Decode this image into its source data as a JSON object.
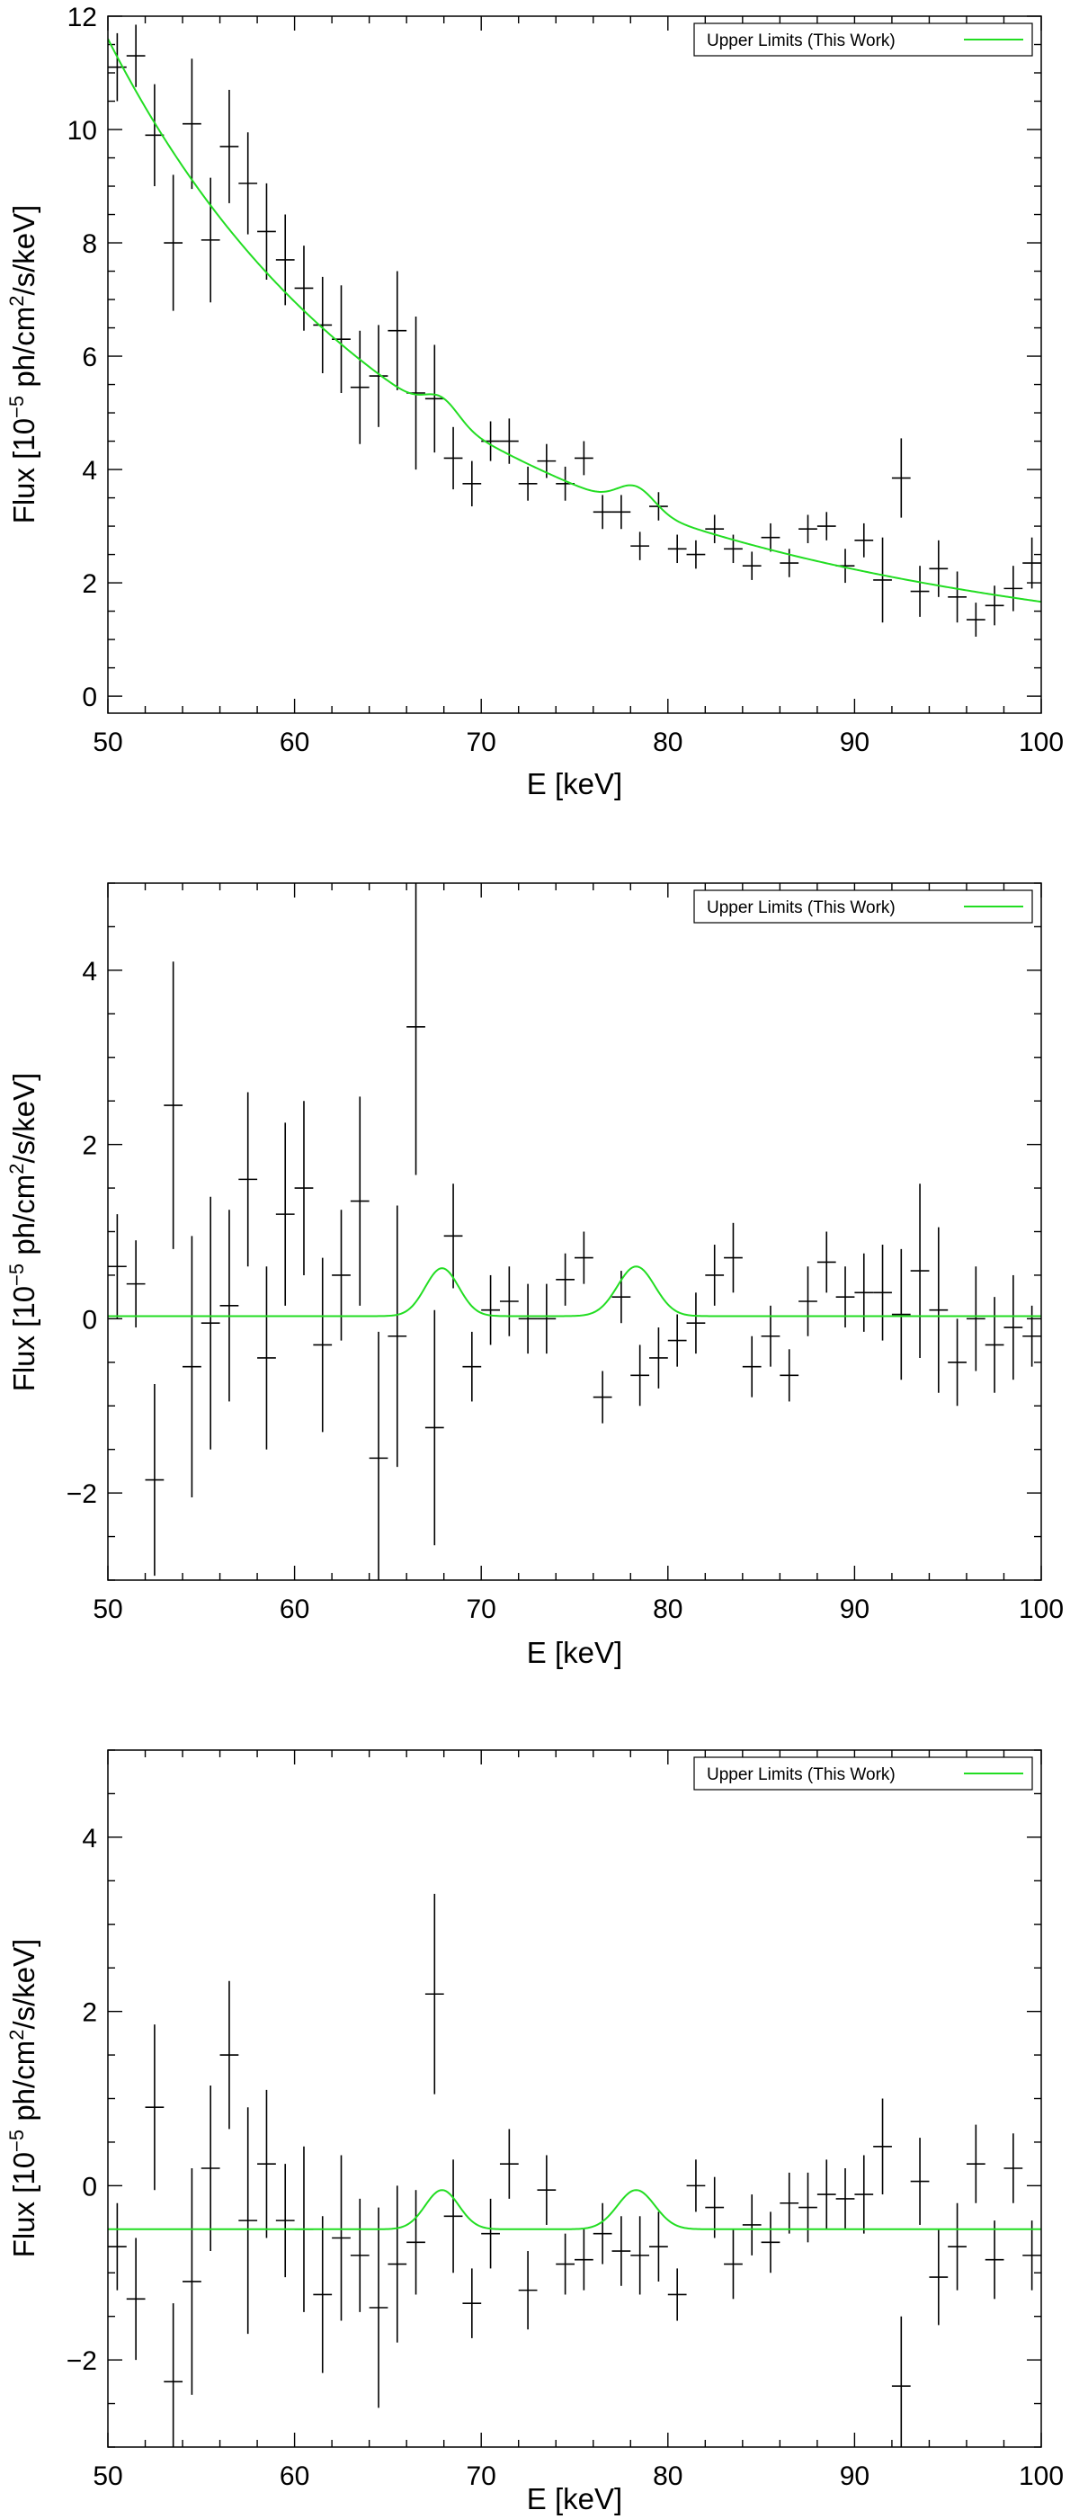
{
  "figure_title": "",
  "chart_data": [
    {
      "type": "scatter",
      "title": "",
      "xlabel": "E [keV]",
      "ylabel_main": "Flux [10",
      "ylabel_exp": "−5",
      "ylabel_mid": " ph/cm",
      "ylabel_exp2": "2",
      "ylabel_end": "/s/keV]",
      "xlim": [
        50,
        100
      ],
      "ylim": [
        -0.3,
        12
      ],
      "xticks": [
        50,
        60,
        70,
        80,
        90,
        100
      ],
      "xtick_labels": [
        "50",
        "60",
        "70",
        "80",
        "90",
        "100"
      ],
      "yticks": [
        0,
        2,
        4,
        6,
        8,
        10,
        12
      ],
      "ytick_labels": [
        "0",
        "2",
        "4",
        "6",
        "8",
        "10",
        "12"
      ],
      "legend": {
        "label": "Upper Limits (This Work)",
        "color": "#22dd22",
        "position": "top-right"
      },
      "model": {
        "type": "powerlaw_plus_lines",
        "norm": 11.6,
        "index": 2.8,
        "baseline": 0,
        "lines": [
          {
            "center": 67.9,
            "amp": 0.35,
            "sigma": 0.9
          },
          {
            "center": 78.3,
            "amp": 0.4,
            "sigma": 1.0
          }
        ]
      },
      "series": [
        {
          "name": "data",
          "x": [
            50.5,
            51.5,
            52.5,
            53.5,
            54.5,
            55.5,
            56.5,
            57.5,
            58.5,
            59.5,
            60.5,
            61.5,
            62.5,
            63.5,
            64.5,
            65.5,
            66.5,
            67.5,
            68.5,
            69.5,
            70.5,
            71.5,
            72.5,
            73.5,
            74.5,
            75.5,
            76.5,
            77.5,
            78.5,
            79.5,
            80.5,
            81.5,
            82.5,
            83.5,
            84.5,
            85.5,
            86.5,
            87.5,
            88.5,
            89.5,
            90.5,
            91.5,
            92.5,
            93.5,
            94.5,
            95.5,
            96.5,
            97.5,
            98.5,
            99.5
          ],
          "y": [
            11.1,
            11.3,
            9.9,
            8.0,
            10.1,
            8.05,
            9.7,
            9.05,
            8.2,
            7.7,
            7.2,
            6.55,
            6.3,
            5.45,
            5.65,
            6.45,
            5.35,
            5.25,
            4.2,
            3.75,
            4.5,
            4.5,
            3.75,
            4.15,
            3.75,
            4.2,
            3.25,
            3.25,
            2.65,
            3.35,
            2.6,
            2.5,
            2.95,
            2.6,
            2.3,
            2.8,
            2.35,
            2.95,
            3.0,
            2.3,
            2.75,
            2.05,
            3.85,
            1.85,
            2.25,
            1.75,
            1.35,
            1.6,
            1.9,
            2.35
          ],
          "yerr": [
            0.6,
            0.55,
            0.9,
            1.2,
            1.15,
            1.1,
            1.0,
            0.9,
            0.85,
            0.8,
            0.75,
            0.85,
            0.95,
            1.0,
            0.9,
            1.05,
            1.35,
            0.95,
            0.55,
            0.4,
            0.35,
            0.4,
            0.3,
            0.3,
            0.3,
            0.3,
            0.3,
            0.3,
            0.25,
            0.25,
            0.25,
            0.25,
            0.25,
            0.25,
            0.25,
            0.25,
            0.25,
            0.25,
            0.25,
            0.3,
            0.3,
            0.75,
            0.7,
            0.45,
            0.5,
            0.45,
            0.3,
            0.35,
            0.4,
            0.45
          ]
        }
      ]
    },
    {
      "type": "scatter",
      "title": "",
      "xlabel": "E [keV]",
      "ylabel_main": "Flux [10",
      "ylabel_exp": "−5",
      "ylabel_mid": " ph/cm",
      "ylabel_exp2": "2",
      "ylabel_end": "/s/keV]",
      "xlim": [
        50,
        100
      ],
      "ylim": [
        -3,
        5
      ],
      "xticks": [
        50,
        60,
        70,
        80,
        90,
        100
      ],
      "xtick_labels": [
        "50",
        "60",
        "70",
        "80",
        "90",
        "100"
      ],
      "yticks": [
        -2,
        0,
        2,
        4
      ],
      "ytick_labels": [
        "−2",
        "0",
        "2",
        "4"
      ],
      "legend": {
        "label": "Upper Limits (This Work)",
        "color": "#22dd22",
        "position": "top-right"
      },
      "model": {
        "type": "baseline_plus_lines",
        "norm": 0,
        "index": 0,
        "baseline": 0.03,
        "lines": [
          {
            "center": 67.9,
            "amp": 0.55,
            "sigma": 0.9
          },
          {
            "center": 78.3,
            "amp": 0.57,
            "sigma": 1.0
          }
        ]
      },
      "series": [
        {
          "name": "data",
          "x": [
            50.5,
            51.5,
            52.5,
            53.5,
            54.5,
            55.5,
            56.5,
            57.5,
            58.5,
            59.5,
            60.5,
            61.5,
            62.5,
            63.5,
            64.5,
            65.5,
            66.5,
            67.5,
            68.5,
            69.5,
            70.5,
            71.5,
            72.5,
            73.5,
            74.5,
            75.5,
            76.5,
            77.5,
            78.5,
            79.5,
            80.5,
            81.5,
            82.5,
            83.5,
            84.5,
            85.5,
            86.5,
            87.5,
            88.5,
            89.5,
            90.5,
            91.5,
            92.5,
            93.5,
            94.5,
            95.5,
            96.5,
            97.5,
            98.5,
            99.5
          ],
          "y": [
            0.6,
            0.4,
            -1.85,
            2.45,
            -0.55,
            -0.05,
            0.15,
            1.6,
            -0.45,
            1.2,
            1.5,
            -0.3,
            0.5,
            1.35,
            -1.6,
            -0.2,
            3.35,
            -1.25,
            0.95,
            -0.55,
            0.1,
            0.2,
            0.0,
            0.0,
            0.45,
            0.7,
            -0.9,
            0.25,
            -0.65,
            -0.45,
            -0.25,
            -0.05,
            0.5,
            0.7,
            -0.55,
            -0.2,
            -0.65,
            0.2,
            0.65,
            0.25,
            0.3,
            0.3,
            0.05,
            0.55,
            0.1,
            -0.5,
            0.0,
            -0.3,
            -0.1,
            -0.2
          ],
          "yerr": [
            0.6,
            0.5,
            1.1,
            1.65,
            1.5,
            1.45,
            1.1,
            1.0,
            1.05,
            1.05,
            1.0,
            1.0,
            0.75,
            1.2,
            1.45,
            1.5,
            1.7,
            1.35,
            0.6,
            0.4,
            0.4,
            0.4,
            0.4,
            0.4,
            0.3,
            0.3,
            0.3,
            0.3,
            0.35,
            0.35,
            0.3,
            0.35,
            0.35,
            0.4,
            0.35,
            0.35,
            0.3,
            0.4,
            0.35,
            0.35,
            0.45,
            0.55,
            0.75,
            1.0,
            0.95,
            0.5,
            0.6,
            0.55,
            0.6,
            0.35
          ]
        }
      ]
    },
    {
      "type": "scatter",
      "title": "",
      "xlabel": "E [keV]",
      "ylabel_main": "Flux [10",
      "ylabel_exp": "−5",
      "ylabel_mid": " ph/cm",
      "ylabel_exp2": "2",
      "ylabel_end": "/s/keV]",
      "xlim": [
        50,
        100
      ],
      "ylim": [
        -3,
        5
      ],
      "xticks": [
        50,
        60,
        70,
        80,
        90,
        100
      ],
      "xtick_labels": [
        "50",
        "60",
        "70",
        "80",
        "90",
        "100"
      ],
      "yticks": [
        -2,
        0,
        2,
        4
      ],
      "ytick_labels": [
        "−2",
        "0",
        "2",
        "4"
      ],
      "legend": {
        "label": "Upper Limits (This Work)",
        "color": "#22dd22",
        "position": "top-right"
      },
      "model": {
        "type": "baseline_plus_lines",
        "norm": 0,
        "index": 0,
        "baseline": -0.5,
        "lines": [
          {
            "center": 67.9,
            "amp": 0.45,
            "sigma": 0.9
          },
          {
            "center": 78.3,
            "amp": 0.45,
            "sigma": 1.0
          }
        ]
      },
      "series": [
        {
          "name": "data",
          "x": [
            50.5,
            51.5,
            52.5,
            53.5,
            54.5,
            55.5,
            56.5,
            57.5,
            58.5,
            59.5,
            60.5,
            61.5,
            62.5,
            63.5,
            64.5,
            65.5,
            66.5,
            67.5,
            68.5,
            69.5,
            70.5,
            71.5,
            72.5,
            73.5,
            74.5,
            75.5,
            76.5,
            77.5,
            78.5,
            79.5,
            80.5,
            81.5,
            82.5,
            83.5,
            84.5,
            85.5,
            86.5,
            87.5,
            88.5,
            89.5,
            90.5,
            91.5,
            92.5,
            93.5,
            94.5,
            95.5,
            96.5,
            97.5,
            98.5,
            99.5
          ],
          "y": [
            -0.7,
            -1.3,
            0.9,
            -2.25,
            -1.1,
            0.2,
            1.5,
            -0.4,
            0.25,
            -0.4,
            -0.5,
            -1.25,
            -0.6,
            -0.8,
            -1.4,
            -0.9,
            -0.65,
            2.2,
            -0.35,
            -1.35,
            -0.55,
            0.25,
            -1.2,
            -0.05,
            -0.9,
            -0.85,
            -0.55,
            -0.75,
            -0.8,
            -0.7,
            -1.25,
            0.0,
            -0.25,
            -0.9,
            -0.45,
            -0.65,
            -0.2,
            -0.25,
            -0.1,
            -0.15,
            -0.1,
            0.45,
            -2.3,
            0.05,
            -1.05,
            -0.7,
            0.25,
            -0.85,
            0.2,
            -0.8
          ],
          "yerr": [
            0.5,
            0.7,
            0.95,
            0.9,
            1.3,
            0.95,
            0.85,
            1.3,
            0.85,
            0.65,
            0.95,
            0.9,
            0.95,
            0.65,
            1.15,
            0.9,
            0.6,
            1.15,
            0.65,
            0.4,
            0.4,
            0.4,
            0.45,
            0.4,
            0.35,
            0.35,
            0.35,
            0.4,
            0.45,
            0.4,
            0.3,
            0.3,
            0.35,
            0.4,
            0.35,
            0.35,
            0.35,
            0.4,
            0.4,
            0.35,
            0.45,
            0.55,
            0.8,
            0.5,
            0.55,
            0.5,
            0.45,
            0.45,
            0.4,
            0.4
          ]
        }
      ]
    }
  ]
}
